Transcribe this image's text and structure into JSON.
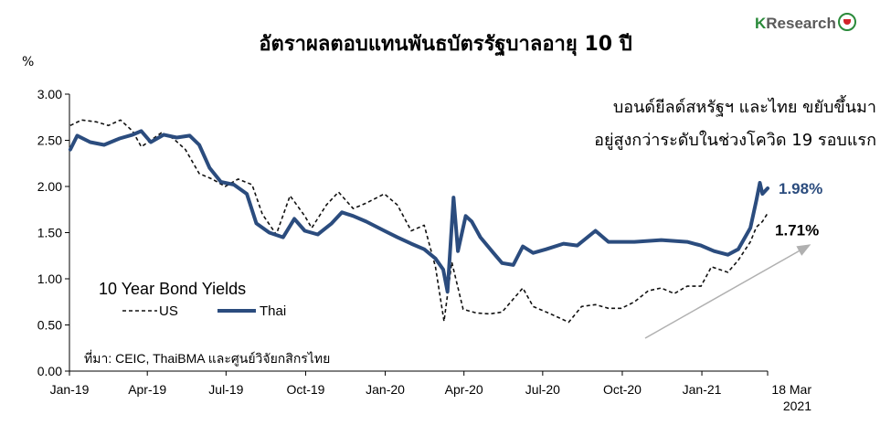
{
  "header": {
    "title": "อัตราผลตอบแทนพันธบัตรรัฐบาลอายุ 10 ปี",
    "brand_prefix": "K",
    "brand_rest": "Research",
    "y_unit": "%"
  },
  "annotation": {
    "line1": "บอนด์ยีลด์สหรัฐฯ และไทย ขยับขึ้นมา",
    "line2": "อยู่สูงกว่าระดับในช่วงโควิด 19 รอบแรก"
  },
  "source": "ที่มา: CEIC, ThaiBMA และศูนย์วิจัยกสิกรไทย",
  "colors": {
    "thai": "#2b4c7e",
    "us": "#111111",
    "arrow": "#b0b0b0"
  },
  "chart_data": {
    "type": "line",
    "title": "อัตราผลตอบแทนพันธบัตรรัฐบาลอายุ 10 ปี",
    "ylabel": "%",
    "legend_title": "10 Year Bond Yields",
    "legend_placement": "bottom-left",
    "ylim": [
      0,
      3
    ],
    "y_ticks": [
      "0.00",
      "0.50",
      "1.00",
      "1.50",
      "2.00",
      "2.50",
      "3.00"
    ],
    "x_ticks": [
      "Jan-19",
      "Apr-19",
      "Jul-19",
      "Oct-19",
      "Jan-20",
      "Apr-20",
      "Jul-20",
      "Oct-20",
      "Jan-21"
    ],
    "x_end_label": [
      "18 Mar",
      "2021"
    ],
    "grid": false,
    "series": [
      {
        "name": "US",
        "style": "dashed",
        "end_label": "1.71%",
        "points": [
          [
            "2019-01-02",
            2.66
          ],
          [
            "2019-01-15",
            2.72
          ],
          [
            "2019-02-01",
            2.7
          ],
          [
            "2019-02-15",
            2.66
          ],
          [
            "2019-03-01",
            2.72
          ],
          [
            "2019-03-15",
            2.6
          ],
          [
            "2019-03-25",
            2.43
          ],
          [
            "2019-04-05",
            2.5
          ],
          [
            "2019-04-17",
            2.58
          ],
          [
            "2019-05-01",
            2.52
          ],
          [
            "2019-05-15",
            2.4
          ],
          [
            "2019-05-31",
            2.14
          ],
          [
            "2019-06-15",
            2.08
          ],
          [
            "2019-06-30",
            2.0
          ],
          [
            "2019-07-15",
            2.08
          ],
          [
            "2019-07-31",
            2.02
          ],
          [
            "2019-08-12",
            1.7
          ],
          [
            "2019-08-28",
            1.48
          ],
          [
            "2019-09-13",
            1.9
          ],
          [
            "2019-09-30",
            1.68
          ],
          [
            "2019-10-08",
            1.55
          ],
          [
            "2019-10-25",
            1.8
          ],
          [
            "2019-11-08",
            1.94
          ],
          [
            "2019-11-25",
            1.76
          ],
          [
            "2019-12-10",
            1.82
          ],
          [
            "2019-12-31",
            1.92
          ],
          [
            "2020-01-15",
            1.8
          ],
          [
            "2020-01-31",
            1.52
          ],
          [
            "2020-02-15",
            1.58
          ],
          [
            "2020-02-28",
            1.13
          ],
          [
            "2020-03-09",
            0.54
          ],
          [
            "2020-03-18",
            1.18
          ],
          [
            "2020-03-31",
            0.67
          ],
          [
            "2020-04-15",
            0.63
          ],
          [
            "2020-05-01",
            0.62
          ],
          [
            "2020-05-15",
            0.64
          ],
          [
            "2020-06-08",
            0.9
          ],
          [
            "2020-06-20",
            0.7
          ],
          [
            "2020-07-10",
            0.62
          ],
          [
            "2020-07-31",
            0.53
          ],
          [
            "2020-08-15",
            0.7
          ],
          [
            "2020-08-31",
            0.72
          ],
          [
            "2020-09-15",
            0.68
          ],
          [
            "2020-09-30",
            0.68
          ],
          [
            "2020-10-15",
            0.75
          ],
          [
            "2020-10-31",
            0.87
          ],
          [
            "2020-11-15",
            0.9
          ],
          [
            "2020-11-30",
            0.84
          ],
          [
            "2020-12-15",
            0.92
          ],
          [
            "2020-12-31",
            0.92
          ],
          [
            "2021-01-12",
            1.13
          ],
          [
            "2021-01-31",
            1.07
          ],
          [
            "2021-02-12",
            1.2
          ],
          [
            "2021-02-26",
            1.4
          ],
          [
            "2021-03-05",
            1.56
          ],
          [
            "2021-03-12",
            1.62
          ],
          [
            "2021-03-18",
            1.71
          ]
        ]
      },
      {
        "name": "Thai",
        "style": "solid",
        "end_label": "1.98%",
        "points": [
          [
            "2019-01-02",
            2.4
          ],
          [
            "2019-01-10",
            2.55
          ],
          [
            "2019-01-25",
            2.48
          ],
          [
            "2019-02-10",
            2.45
          ],
          [
            "2019-02-28",
            2.52
          ],
          [
            "2019-03-15",
            2.56
          ],
          [
            "2019-03-25",
            2.6
          ],
          [
            "2019-04-05",
            2.48
          ],
          [
            "2019-04-20",
            2.56
          ],
          [
            "2019-05-05",
            2.53
          ],
          [
            "2019-05-20",
            2.55
          ],
          [
            "2019-05-31",
            2.45
          ],
          [
            "2019-06-12",
            2.2
          ],
          [
            "2019-06-25",
            2.05
          ],
          [
            "2019-07-10",
            2.02
          ],
          [
            "2019-07-25",
            1.92
          ],
          [
            "2019-08-05",
            1.6
          ],
          [
            "2019-08-20",
            1.5
          ],
          [
            "2019-09-05",
            1.45
          ],
          [
            "2019-09-18",
            1.65
          ],
          [
            "2019-09-30",
            1.52
          ],
          [
            "2019-10-15",
            1.48
          ],
          [
            "2019-10-31",
            1.6
          ],
          [
            "2019-11-12",
            1.72
          ],
          [
            "2019-11-25",
            1.68
          ],
          [
            "2019-12-10",
            1.62
          ],
          [
            "2019-12-31",
            1.52
          ],
          [
            "2020-01-15",
            1.45
          ],
          [
            "2020-01-31",
            1.38
          ],
          [
            "2020-02-15",
            1.32
          ],
          [
            "2020-02-28",
            1.22
          ],
          [
            "2020-03-08",
            1.1
          ],
          [
            "2020-03-13",
            0.86
          ],
          [
            "2020-03-20",
            1.88
          ],
          [
            "2020-03-25",
            1.3
          ],
          [
            "2020-04-03",
            1.68
          ],
          [
            "2020-04-10",
            1.62
          ],
          [
            "2020-04-20",
            1.45
          ],
          [
            "2020-05-05",
            1.28
          ],
          [
            "2020-05-15",
            1.17
          ],
          [
            "2020-05-28",
            1.15
          ],
          [
            "2020-06-08",
            1.35
          ],
          [
            "2020-06-20",
            1.28
          ],
          [
            "2020-07-05",
            1.32
          ],
          [
            "2020-07-25",
            1.38
          ],
          [
            "2020-08-10",
            1.36
          ],
          [
            "2020-08-31",
            1.52
          ],
          [
            "2020-09-15",
            1.4
          ],
          [
            "2020-10-15",
            1.4
          ],
          [
            "2020-11-15",
            1.42
          ],
          [
            "2020-12-15",
            1.4
          ],
          [
            "2020-12-31",
            1.36
          ],
          [
            "2021-01-15",
            1.3
          ],
          [
            "2021-01-31",
            1.26
          ],
          [
            "2021-02-12",
            1.32
          ],
          [
            "2021-02-26",
            1.55
          ],
          [
            "2021-03-05",
            1.85
          ],
          [
            "2021-03-09",
            2.04
          ],
          [
            "2021-03-12",
            1.92
          ],
          [
            "2021-03-18",
            1.98
          ]
        ]
      }
    ]
  }
}
